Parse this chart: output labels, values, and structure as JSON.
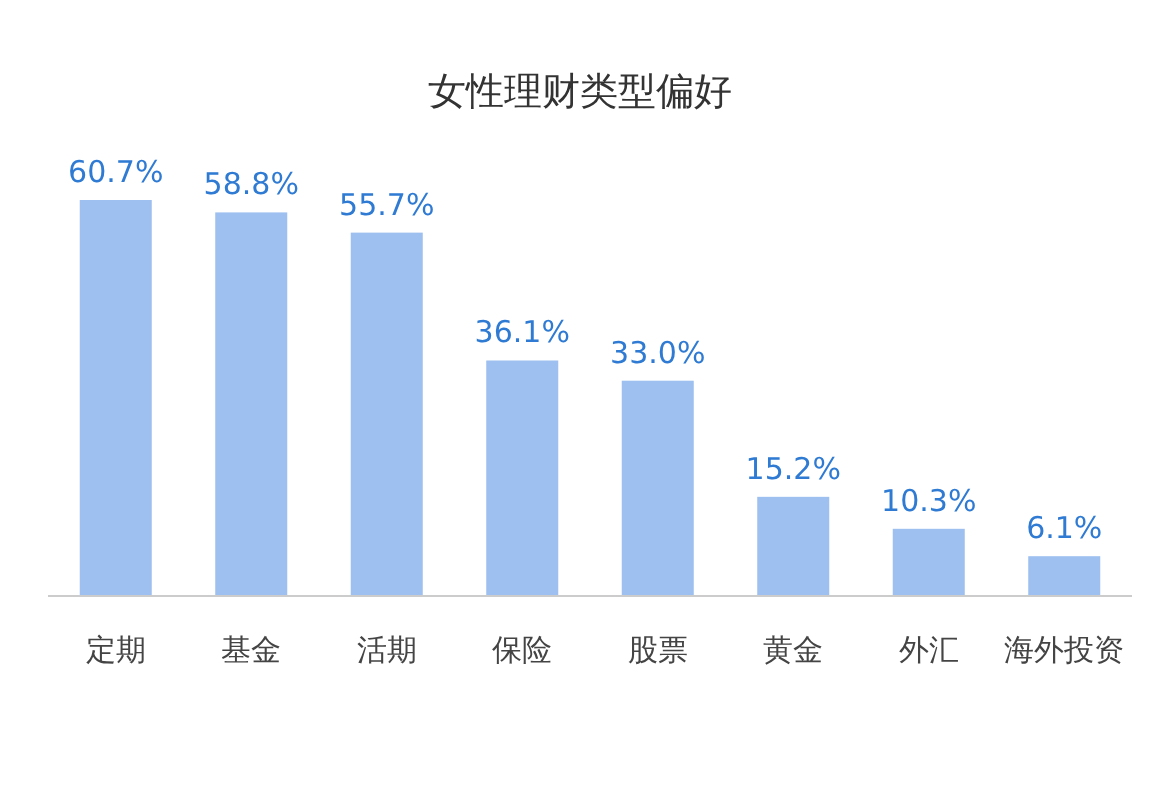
{
  "chart_data": {
    "type": "bar",
    "title": "女性理财类型偏好",
    "categories": [
      "定期",
      "基金",
      "活期",
      "保险",
      "股票",
      "黄金",
      "外汇",
      "海外投资"
    ],
    "values": [
      60.7,
      58.8,
      55.7,
      36.1,
      33.0,
      15.2,
      10.3,
      6.1
    ],
    "value_labels": [
      "60.7%",
      "58.8%",
      "55.7%",
      "36.1%",
      "33.0%",
      "15.2%",
      "10.3%",
      "6.1%"
    ],
    "color": "#9dc0f0"
  }
}
